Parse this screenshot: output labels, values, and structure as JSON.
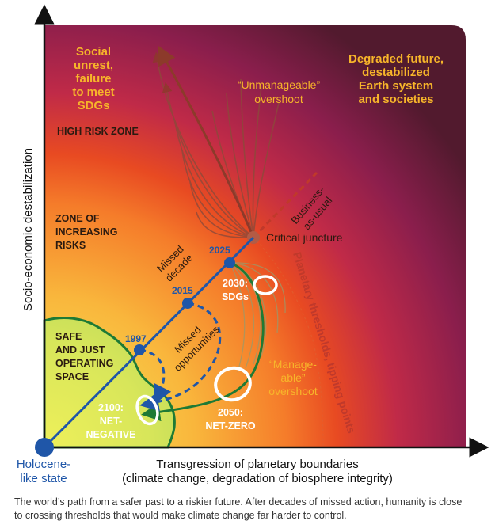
{
  "axes": {
    "y_label": "Socio-economic destabilization",
    "x_label_line1": "Transgression of planetary boundaries",
    "x_label_line2": "(climate change, degradation of biosphere integrity)"
  },
  "origin": {
    "line1": "Holocene-",
    "line2": "like state"
  },
  "zones": {
    "safe": [
      "SAFE",
      "AND JUST",
      "OPERATING",
      "SPACE"
    ],
    "increasing": [
      "ZONE OF",
      "INCREASING",
      "RISKS"
    ],
    "high": "HIGH RISK ZONE"
  },
  "corner_labels": {
    "social": [
      "Social",
      "unrest,",
      "failure",
      "to meet",
      "SDGs"
    ],
    "degraded": [
      "Degraded future,",
      "destabilized",
      "Earth system",
      "and societies"
    ]
  },
  "overshoot": {
    "unmanageable": [
      "“Unmanageable”",
      "overshoot"
    ],
    "manageable": [
      "“Manage-",
      "able”",
      "overshoot"
    ]
  },
  "path_labels": {
    "bau": [
      "Business-",
      "as-usual"
    ],
    "critical": "Critical juncture",
    "missed_decade": [
      "Missed",
      "decade"
    ],
    "missed_opps": [
      "Missed",
      "opportunities"
    ],
    "thresholds": "Planetary thresholds, tipping points"
  },
  "years": {
    "y1997": "1997",
    "y2015": "2015",
    "y2025": "2025"
  },
  "targets": {
    "sdgs": [
      "2030:",
      "SDGs"
    ],
    "netzero": [
      "2050:",
      "NET-ZERO"
    ],
    "netneg": [
      "2100:",
      "NET-",
      "NEGATIVE"
    ]
  },
  "caption": {
    "line1": "The world’s path from a safer past to a riskier future. After decades of missed action, humanity is close",
    "line2": "to crossing thresholds that would make climate change far harder to control."
  },
  "colors": {
    "path_blue": "#1f56a8",
    "green": "#1e7a35",
    "bau_red": "#c0392b",
    "label_orange": "#f7b52a",
    "dark_text": "#2a1a10"
  }
}
